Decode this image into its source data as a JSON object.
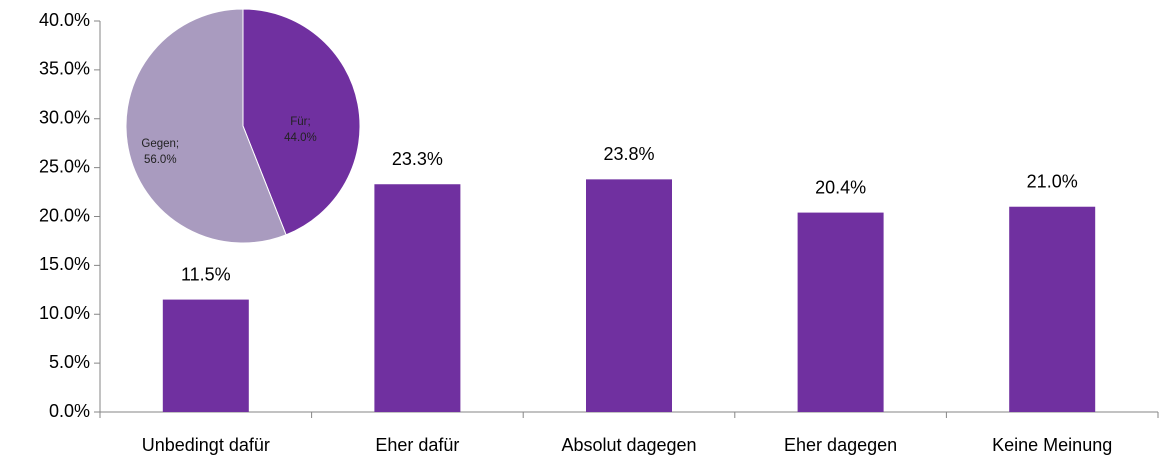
{
  "chart_data": [
    {
      "type": "bar",
      "categories": [
        "Unbedingt dafür",
        "Eher dafür",
        "Absolut dagegen",
        "Eher dagegen",
        "Keine Meinung"
      ],
      "values": [
        11.5,
        23.3,
        23.8,
        20.4,
        21.0
      ],
      "value_labels": [
        "11.5%",
        "23.3%",
        "23.8%",
        "20.4%",
        "21.0%"
      ],
      "color": "#7030a0",
      "ylim": [
        0,
        40
      ],
      "yticks": [
        {
          "value": 0,
          "label": "0.0%"
        },
        {
          "value": 5,
          "label": "5.0%"
        },
        {
          "value": 10,
          "label": "10.0%"
        },
        {
          "value": 15,
          "label": "15.0%"
        },
        {
          "value": 20,
          "label": "20.0%"
        },
        {
          "value": 25,
          "label": "25.0%"
        },
        {
          "value": 30,
          "label": "30.0%"
        },
        {
          "value": 35,
          "label": "35.0%"
        },
        {
          "value": 40,
          "label": "40.0%"
        }
      ]
    },
    {
      "type": "pie",
      "categories": [
        "Für;",
        "Gegen;"
      ],
      "values": [
        44.0,
        56.0
      ],
      "value_labels": [
        "44.0%",
        "56.0%"
      ],
      "colors": [
        "#7030a0",
        "#a99bbf"
      ]
    }
  ]
}
